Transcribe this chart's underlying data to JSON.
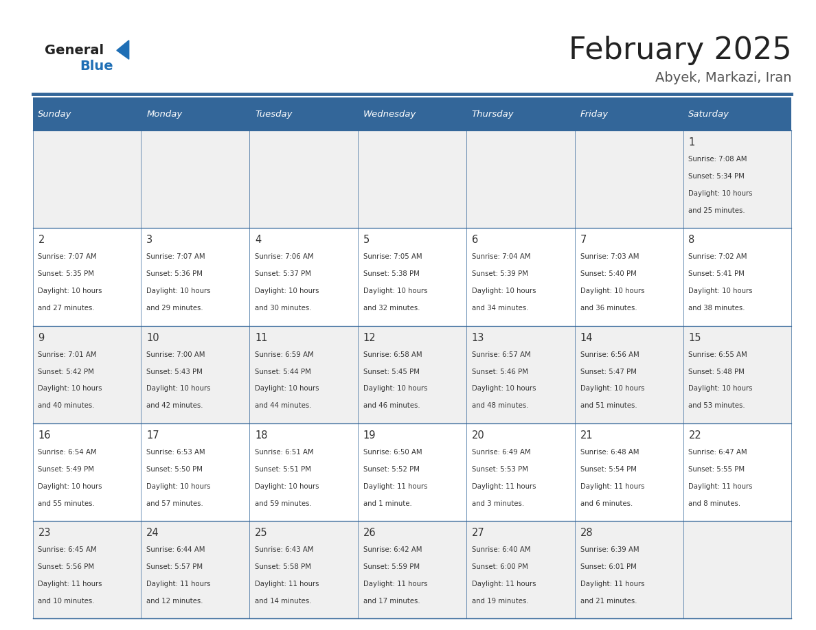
{
  "title": "February 2025",
  "subtitle": "Abyek, Markazi, Iran",
  "days_of_week": [
    "Sunday",
    "Monday",
    "Tuesday",
    "Wednesday",
    "Thursday",
    "Friday",
    "Saturday"
  ],
  "header_bg": "#336699",
  "header_text_color": "#ffffff",
  "cell_bg_odd": "#f0f0f0",
  "cell_bg_even": "#ffffff",
  "border_color": "#336699",
  "text_color": "#333333",
  "day_num_color": "#333333",
  "title_color": "#222222",
  "subtitle_color": "#555555",
  "logo_general_color": "#222222",
  "logo_blue_color": "#1e6eb5",
  "separator_color": "#336699",
  "calendar_data": [
    [
      null,
      null,
      null,
      null,
      null,
      null,
      {
        "day": 1,
        "sunrise": "7:08 AM",
        "sunset": "5:34 PM",
        "daylight_h": "10 hours",
        "daylight_m": "and 25 minutes."
      }
    ],
    [
      {
        "day": 2,
        "sunrise": "7:07 AM",
        "sunset": "5:35 PM",
        "daylight_h": "10 hours",
        "daylight_m": "and 27 minutes."
      },
      {
        "day": 3,
        "sunrise": "7:07 AM",
        "sunset": "5:36 PM",
        "daylight_h": "10 hours",
        "daylight_m": "and 29 minutes."
      },
      {
        "day": 4,
        "sunrise": "7:06 AM",
        "sunset": "5:37 PM",
        "daylight_h": "10 hours",
        "daylight_m": "and 30 minutes."
      },
      {
        "day": 5,
        "sunrise": "7:05 AM",
        "sunset": "5:38 PM",
        "daylight_h": "10 hours",
        "daylight_m": "and 32 minutes."
      },
      {
        "day": 6,
        "sunrise": "7:04 AM",
        "sunset": "5:39 PM",
        "daylight_h": "10 hours",
        "daylight_m": "and 34 minutes."
      },
      {
        "day": 7,
        "sunrise": "7:03 AM",
        "sunset": "5:40 PM",
        "daylight_h": "10 hours",
        "daylight_m": "and 36 minutes."
      },
      {
        "day": 8,
        "sunrise": "7:02 AM",
        "sunset": "5:41 PM",
        "daylight_h": "10 hours",
        "daylight_m": "and 38 minutes."
      }
    ],
    [
      {
        "day": 9,
        "sunrise": "7:01 AM",
        "sunset": "5:42 PM",
        "daylight_h": "10 hours",
        "daylight_m": "and 40 minutes."
      },
      {
        "day": 10,
        "sunrise": "7:00 AM",
        "sunset": "5:43 PM",
        "daylight_h": "10 hours",
        "daylight_m": "and 42 minutes."
      },
      {
        "day": 11,
        "sunrise": "6:59 AM",
        "sunset": "5:44 PM",
        "daylight_h": "10 hours",
        "daylight_m": "and 44 minutes."
      },
      {
        "day": 12,
        "sunrise": "6:58 AM",
        "sunset": "5:45 PM",
        "daylight_h": "10 hours",
        "daylight_m": "and 46 minutes."
      },
      {
        "day": 13,
        "sunrise": "6:57 AM",
        "sunset": "5:46 PM",
        "daylight_h": "10 hours",
        "daylight_m": "and 48 minutes."
      },
      {
        "day": 14,
        "sunrise": "6:56 AM",
        "sunset": "5:47 PM",
        "daylight_h": "10 hours",
        "daylight_m": "and 51 minutes."
      },
      {
        "day": 15,
        "sunrise": "6:55 AM",
        "sunset": "5:48 PM",
        "daylight_h": "10 hours",
        "daylight_m": "and 53 minutes."
      }
    ],
    [
      {
        "day": 16,
        "sunrise": "6:54 AM",
        "sunset": "5:49 PM",
        "daylight_h": "10 hours",
        "daylight_m": "and 55 minutes."
      },
      {
        "day": 17,
        "sunrise": "6:53 AM",
        "sunset": "5:50 PM",
        "daylight_h": "10 hours",
        "daylight_m": "and 57 minutes."
      },
      {
        "day": 18,
        "sunrise": "6:51 AM",
        "sunset": "5:51 PM",
        "daylight_h": "10 hours",
        "daylight_m": "and 59 minutes."
      },
      {
        "day": 19,
        "sunrise": "6:50 AM",
        "sunset": "5:52 PM",
        "daylight_h": "11 hours",
        "daylight_m": "and 1 minute."
      },
      {
        "day": 20,
        "sunrise": "6:49 AM",
        "sunset": "5:53 PM",
        "daylight_h": "11 hours",
        "daylight_m": "and 3 minutes."
      },
      {
        "day": 21,
        "sunrise": "6:48 AM",
        "sunset": "5:54 PM",
        "daylight_h": "11 hours",
        "daylight_m": "and 6 minutes."
      },
      {
        "day": 22,
        "sunrise": "6:47 AM",
        "sunset": "5:55 PM",
        "daylight_h": "11 hours",
        "daylight_m": "and 8 minutes."
      }
    ],
    [
      {
        "day": 23,
        "sunrise": "6:45 AM",
        "sunset": "5:56 PM",
        "daylight_h": "11 hours",
        "daylight_m": "and 10 minutes."
      },
      {
        "day": 24,
        "sunrise": "6:44 AM",
        "sunset": "5:57 PM",
        "daylight_h": "11 hours",
        "daylight_m": "and 12 minutes."
      },
      {
        "day": 25,
        "sunrise": "6:43 AM",
        "sunset": "5:58 PM",
        "daylight_h": "11 hours",
        "daylight_m": "and 14 minutes."
      },
      {
        "day": 26,
        "sunrise": "6:42 AM",
        "sunset": "5:59 PM",
        "daylight_h": "11 hours",
        "daylight_m": "and 17 minutes."
      },
      {
        "day": 27,
        "sunrise": "6:40 AM",
        "sunset": "6:00 PM",
        "daylight_h": "11 hours",
        "daylight_m": "and 19 minutes."
      },
      {
        "day": 28,
        "sunrise": "6:39 AM",
        "sunset": "6:01 PM",
        "daylight_h": "11 hours",
        "daylight_m": "and 21 minutes."
      },
      null
    ]
  ]
}
